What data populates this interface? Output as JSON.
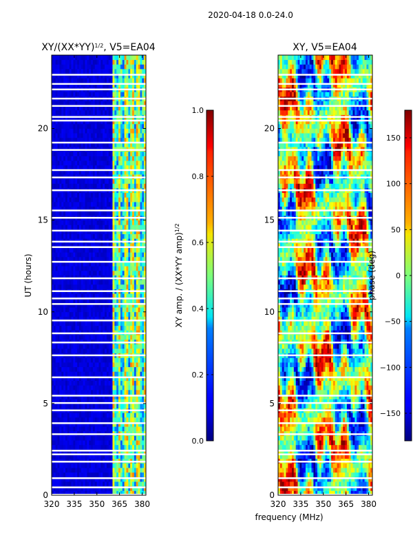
{
  "suptitle": "2020-04-18 0.0-24.0",
  "chart_data": [
    {
      "type": "heatmap",
      "title_main": "XY/(XX*YY)",
      "title_sup": "1/2",
      "title_tail": ", V5=EA04",
      "ylabel": "UT (hours)",
      "xlim": [
        320,
        382.5
      ],
      "ylim": [
        0,
        24
      ],
      "xticks": [
        "320",
        "335",
        "350",
        "365",
        "380"
      ],
      "xtick_values": [
        320,
        335,
        350,
        365,
        380
      ],
      "yticks": [
        "0",
        "5",
        "10",
        "15",
        "20"
      ],
      "ytick_values": [
        0,
        5,
        10,
        15,
        20
      ],
      "colormap": "jet",
      "colorbar": {
        "label_main": "XY amp. / (XX*YY amp)",
        "label_sup": "1/2",
        "range": [
          0,
          1
        ],
        "ticks": [
          "0.0",
          "0.2",
          "0.4",
          "0.6",
          "0.8",
          "1.0"
        ],
        "tick_values": [
          0,
          0.2,
          0.4,
          0.6,
          0.8,
          1.0
        ]
      },
      "gap_rows_hours": [
        0.0,
        0.4,
        0.9,
        1.8,
        2.2,
        2.4,
        3.3,
        3.9,
        4.6,
        5.0,
        5.4,
        6.4,
        7.6,
        8.3,
        8.8,
        9.5,
        10.4,
        10.7,
        11.1,
        11.8,
        12.7,
        13.5,
        13.8,
        14.4,
        15.1,
        15.5,
        16.6,
        17.3,
        17.7,
        18.8,
        19.2,
        20.4,
        20.6,
        21.2,
        21.6,
        22.1,
        22.4,
        22.9
      ]
    },
    {
      "type": "heatmap",
      "title": "XY, V5=EA04",
      "xlabel": "frequency (MHz)",
      "xlim": [
        320,
        382.5
      ],
      "ylim": [
        0,
        24
      ],
      "xticks": [
        "320",
        "335",
        "350",
        "365",
        "380"
      ],
      "xtick_values": [
        320,
        335,
        350,
        365,
        380
      ],
      "yticks": [
        "0",
        "5",
        "10",
        "15",
        "20"
      ],
      "ytick_values": [
        0,
        5,
        10,
        15,
        20
      ],
      "colormap": "jet",
      "colorbar": {
        "label": "phase (deg)",
        "range": [
          -180,
          180
        ],
        "ticks": [
          "−150",
          "−100",
          "−50",
          "0",
          "50",
          "100",
          "150"
        ],
        "tick_values": [
          -150,
          -100,
          -50,
          0,
          50,
          100,
          150
        ]
      },
      "gap_rows_hours": [
        0.0,
        0.4,
        0.9,
        1.8,
        2.2,
        2.4,
        3.3,
        3.9,
        4.6,
        5.0,
        5.4,
        6.4,
        7.6,
        8.3,
        8.8,
        9.5,
        10.4,
        10.7,
        11.1,
        11.8,
        12.7,
        13.5,
        13.8,
        14.4,
        15.1,
        15.5,
        16.6,
        17.3,
        17.7,
        18.8,
        19.2,
        20.4,
        20.6,
        21.2,
        21.6,
        22.1,
        22.4,
        22.9
      ]
    }
  ]
}
